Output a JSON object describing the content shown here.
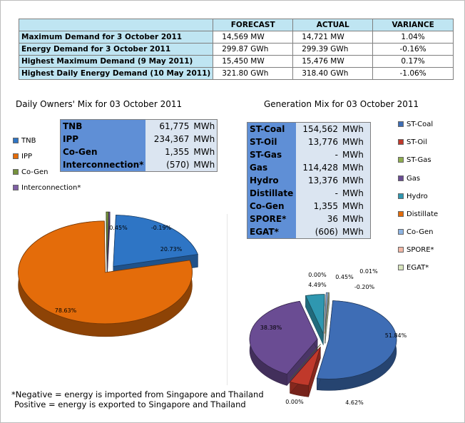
{
  "summary_table": {
    "headers": [
      "",
      "FORECAST",
      "ACTUAL",
      "VARIANCE"
    ],
    "rows": [
      {
        "label": "Maximum Demand for 3 October 2011",
        "forecast": "14,569  MW",
        "actual": "14,721  MW",
        "variance": "1.04%"
      },
      {
        "label": "Energy Demand for 3 October 2011",
        "forecast": "299.87  GWh",
        "actual": "299.39  GWh",
        "variance": "-0.16%"
      },
      {
        "label": "Highest Maximum Demand (9 May 2011)",
        "forecast": "15,450  MW",
        "actual": "15,476  MW",
        "variance": "0.17%"
      },
      {
        "label": "Highest Daily Energy Demand (10 May 2011)",
        "forecast": "321.80  GWh",
        "actual": "318.40  GWh",
        "variance": "-1.06%"
      }
    ]
  },
  "owners": {
    "title": "Daily Owners' Mix for 03 October 2011",
    "rows": [
      {
        "name": "TNB",
        "value": "61,775",
        "unit": "MWh"
      },
      {
        "name": "IPP",
        "value": "234,367",
        "unit": "MWh"
      },
      {
        "name": "Co-Gen",
        "value": "1,355",
        "unit": "MWh"
      },
      {
        "name": "Interconnection*",
        "value": "(570)",
        "unit": "MWh"
      }
    ],
    "legend": [
      {
        "name": "TNB",
        "color": "#2e75c5"
      },
      {
        "name": "IPP",
        "color": "#e46c0a"
      },
      {
        "name": "Co-Gen",
        "color": "#76923c"
      },
      {
        "name": "Interconnection*",
        "color": "#7f5fa5"
      }
    ]
  },
  "generation": {
    "title": "Generation Mix for 03 October 2011",
    "rows": [
      {
        "name": "ST-Coal",
        "value": "154,562",
        "unit": "MWh"
      },
      {
        "name": "ST-Oil",
        "value": "13,776",
        "unit": "MWh"
      },
      {
        "name": "ST-Gas",
        "value": "-",
        "unit": "MWh"
      },
      {
        "name": "Gas",
        "value": "114,428",
        "unit": "MWh"
      },
      {
        "name": "Hydro",
        "value": "13,376",
        "unit": "MWh"
      },
      {
        "name": "Distillate",
        "value": "-",
        "unit": "MWh"
      },
      {
        "name": "Co-Gen",
        "value": "1,355",
        "unit": "MWh"
      },
      {
        "name": "SPORE*",
        "value": "36",
        "unit": "MWh"
      },
      {
        "name": "EGAT*",
        "value": "(606)",
        "unit": "MWh"
      }
    ],
    "legend": [
      {
        "name": "ST-Coal",
        "color": "#3e6db5"
      },
      {
        "name": "ST-Oil",
        "color": "#c0392b"
      },
      {
        "name": "ST-Gas",
        "color": "#8fad4f"
      },
      {
        "name": "Gas",
        "color": "#6a4c93"
      },
      {
        "name": "Hydro",
        "color": "#2f97b0"
      },
      {
        "name": "Distillate",
        "color": "#e46c0a"
      },
      {
        "name": "Co-Gen",
        "color": "#8eb4e3"
      },
      {
        "name": "SPORE*",
        "color": "#f2b8a6"
      },
      {
        "name": "EGAT*",
        "color": "#d7e4bd"
      }
    ]
  },
  "chart_data": [
    {
      "type": "pie",
      "title": "Daily Owners' Mix for 03 October 2011",
      "categories": [
        "TNB",
        "IPP",
        "Co-Gen",
        "Interconnection*"
      ],
      "values": [
        20.73,
        78.63,
        0.45,
        -0.19
      ],
      "labels": [
        "20.73%",
        "78.63%",
        "0.45%",
        "-0.19%"
      ]
    },
    {
      "type": "pie",
      "title": "Generation Mix for 03 October 2011",
      "categories": [
        "ST-Coal",
        "ST-Oil",
        "ST-Gas",
        "Gas",
        "Hydro",
        "Distillate",
        "Co-Gen",
        "SPORE*",
        "EGAT*"
      ],
      "values": [
        51.84,
        4.62,
        0.0,
        38.38,
        4.49,
        0.0,
        0.45,
        0.01,
        -0.2
      ],
      "labels": [
        "51.84%",
        "4.62%",
        "0.00%",
        "38.38%",
        "4.49%",
        "0.00%",
        "0.45%",
        "0.01%",
        "-0.20%"
      ]
    }
  ],
  "footnote": {
    "line1": "*Negative = energy is imported from Singapore and Thailand",
    "line2": "Positive = energy is exported to Singapore and Thailand"
  }
}
